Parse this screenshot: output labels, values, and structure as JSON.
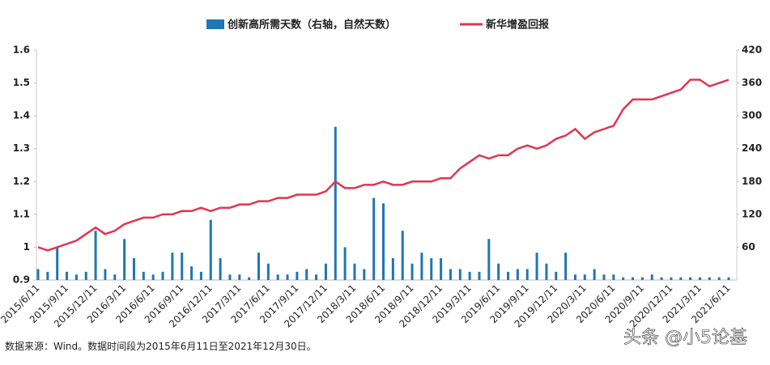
{
  "chart_data": {
    "type": "bar-line",
    "categories": [
      "2015/6/11",
      null,
      null,
      "2015/9/11",
      null,
      null,
      "2015/12/11",
      null,
      null,
      "2016/3/11",
      null,
      null,
      "2016/6/11",
      null,
      null,
      "2016/9/11",
      null,
      null,
      "2016/12/11",
      null,
      null,
      "2017/3/11",
      null,
      null,
      "2017/6/11",
      null,
      null,
      "2017/9/11",
      null,
      null,
      "2017/12/11",
      null,
      null,
      "2018/3/11",
      null,
      null,
      "2018/6/11",
      null,
      null,
      "2018/9/11",
      null,
      null,
      "2018/12/11",
      null,
      null,
      "2019/3/11",
      null,
      null,
      "2019/6/11",
      null,
      null,
      "2019/9/11",
      null,
      null,
      "2019/12/11",
      null,
      null,
      "2020/3/11",
      null,
      null,
      "2020/6/11",
      null,
      null,
      "2020/9/11",
      null,
      null,
      "2020/12/11",
      null,
      null,
      "2021/3/11",
      null,
      null,
      "2021/6/11"
    ],
    "series": [
      {
        "name": "创新高所需天数（右轴，自然天数）",
        "type": "bar",
        "axis": "y2",
        "color": "#1f77b4",
        "values": [
          20,
          15,
          60,
          15,
          10,
          15,
          90,
          20,
          10,
          75,
          40,
          15,
          10,
          15,
          50,
          50,
          25,
          15,
          110,
          40,
          10,
          10,
          5,
          50,
          30,
          10,
          10,
          15,
          20,
          10,
          30,
          280,
          60,
          30,
          20,
          150,
          140,
          40,
          90,
          30,
          50,
          40,
          40,
          20,
          20,
          15,
          15,
          75,
          30,
          15,
          20,
          20,
          50,
          30,
          15,
          50,
          10,
          10,
          20,
          10,
          10,
          5,
          5,
          5,
          10,
          5,
          5,
          5,
          5,
          5,
          5,
          5,
          5
        ]
      },
      {
        "name": "新华增盈回报",
        "type": "line",
        "color": "#e0364f",
        "values": [
          1.0,
          0.99,
          1.0,
          1.01,
          1.02,
          1.04,
          1.06,
          1.04,
          1.05,
          1.07,
          1.08,
          1.09,
          1.09,
          1.1,
          1.1,
          1.11,
          1.11,
          1.12,
          1.11,
          1.12,
          1.12,
          1.13,
          1.13,
          1.14,
          1.14,
          1.15,
          1.15,
          1.16,
          1.16,
          1.16,
          1.17,
          1.2,
          1.18,
          1.18,
          1.19,
          1.19,
          1.2,
          1.19,
          1.19,
          1.2,
          1.2,
          1.2,
          1.21,
          1.21,
          1.24,
          1.26,
          1.28,
          1.27,
          1.28,
          1.28,
          1.3,
          1.31,
          1.3,
          1.31,
          1.33,
          1.34,
          1.36,
          1.33,
          1.35,
          1.36,
          1.37,
          1.42,
          1.45,
          1.45,
          1.45,
          1.46,
          1.47,
          1.48,
          1.51,
          1.51,
          1.49,
          1.5,
          1.51
        ]
      }
    ],
    "ylim": [
      0.9,
      1.6
    ],
    "yticks": [
      0.9,
      1,
      1.1,
      1.2,
      1.3,
      1.4,
      1.5,
      1.6
    ],
    "y2lim": [
      0,
      420
    ],
    "y2ticks": [
      60,
      120,
      180,
      240,
      300,
      360,
      420
    ],
    "grid": false,
    "legend": "top",
    "source": "数据来源：Wind。数据时间段为2015年6月11日至2021年12月30日。",
    "watermark": "头条 @小5论基"
  }
}
